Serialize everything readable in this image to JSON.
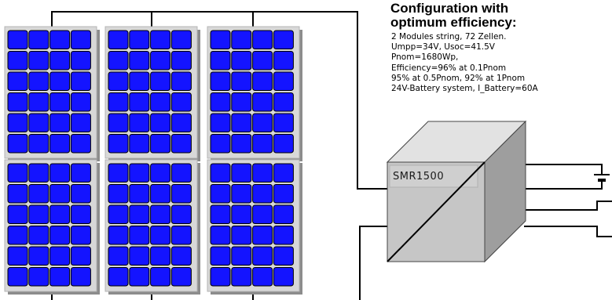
{
  "title": {
    "line1": "Configuration with",
    "line2": "optimum efficiency:"
  },
  "specs": [
    "2 Modules string, 72 Zellen.",
    "Umpp=34V, Usoc=41.5V",
    "Pnom=1680Wp,",
    "Efficiency=96% at 0.1Pnom",
    "95% at 0.5Pnom, 92% at 1Pnom",
    "24V-Battery system, I_Battery=60A"
  ],
  "device": {
    "label": "SMR1500"
  },
  "panels": {
    "count": 6,
    "cell_columns": 4,
    "cell_rows": 6,
    "cell_color": "#1414ff",
    "frame_color": "#d8d8d8"
  },
  "colors": {
    "wire": "#000000",
    "device_front": "#c6c6c6",
    "device_top": "#e2e2e2",
    "device_side": "#9e9e9e"
  }
}
